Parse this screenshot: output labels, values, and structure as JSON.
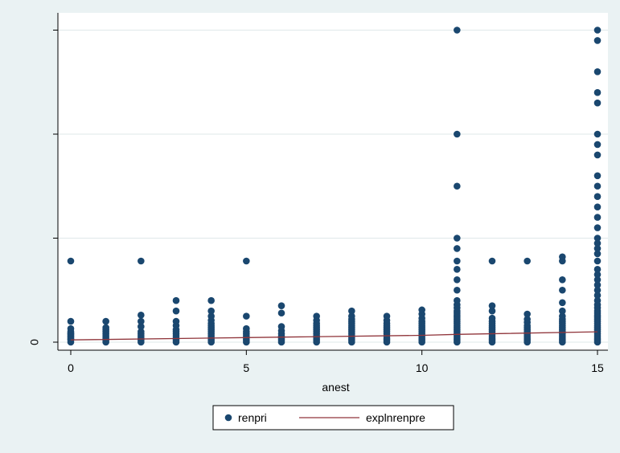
{
  "chart_data": {
    "type": "scatter",
    "title": "",
    "xlabel": "anest",
    "ylabel": "",
    "xlim": [
      0,
      15
    ],
    "x_ticks": [
      "0",
      "5",
      "10",
      "15"
    ],
    "y_tick_labels": [
      "0",
      "",
      "",
      ""
    ],
    "grid": true,
    "legend_position": "bottom",
    "colors": {
      "background": "#eaf2f3",
      "plot_area": "#ffffff",
      "grid": "#dfe8ea",
      "points": "#1a476f",
      "fit_line": "#90353b"
    },
    "series": [
      {
        "name": "renpri",
        "kind": "scatter",
        "columns": [
          {
            "x": 0,
            "points": [
              0.0,
              0.02,
              0.03,
              0.04,
              0.05,
              0.06,
              0.07,
              0.08,
              0.09,
              0.1,
              0.13,
              0.2,
              0.78
            ]
          },
          {
            "x": 1,
            "points": [
              0.0,
              0.02,
              0.04,
              0.06,
              0.08,
              0.1,
              0.12,
              0.14,
              0.2
            ]
          },
          {
            "x": 2,
            "points": [
              0.0,
              0.02,
              0.04,
              0.06,
              0.08,
              0.1,
              0.15,
              0.2,
              0.26,
              0.78
            ]
          },
          {
            "x": 3,
            "points": [
              0.0,
              0.02,
              0.04,
              0.06,
              0.08,
              0.1,
              0.12,
              0.16,
              0.2,
              0.3,
              0.4
            ]
          },
          {
            "x": 4,
            "points": [
              0.0,
              0.02,
              0.04,
              0.06,
              0.08,
              0.1,
              0.12,
              0.14,
              0.16,
              0.18,
              0.21,
              0.25,
              0.3,
              0.4
            ]
          },
          {
            "x": 5,
            "points": [
              0.0,
              0.02,
              0.04,
              0.06,
              0.08,
              0.1,
              0.13,
              0.25,
              0.78
            ]
          },
          {
            "x": 6,
            "points": [
              0.0,
              0.02,
              0.04,
              0.06,
              0.08,
              0.11,
              0.15,
              0.28,
              0.35
            ]
          },
          {
            "x": 7,
            "points": [
              0.0,
              0.02,
              0.04,
              0.06,
              0.08,
              0.1,
              0.12,
              0.14,
              0.16,
              0.18,
              0.21,
              0.25
            ]
          },
          {
            "x": 8,
            "points": [
              0.0,
              0.02,
              0.04,
              0.06,
              0.08,
              0.1,
              0.12,
              0.14,
              0.16,
              0.18,
              0.2,
              0.22,
              0.25,
              0.3
            ]
          },
          {
            "x": 9,
            "points": [
              0.0,
              0.02,
              0.04,
              0.06,
              0.08,
              0.1,
              0.12,
              0.14,
              0.16,
              0.18,
              0.21,
              0.25
            ]
          },
          {
            "x": 10,
            "points": [
              0.0,
              0.02,
              0.04,
              0.06,
              0.08,
              0.1,
              0.12,
              0.14,
              0.16,
              0.18,
              0.2,
              0.23,
              0.27,
              0.31
            ]
          },
          {
            "x": 11,
            "points": [
              0.0,
              0.02,
              0.04,
              0.06,
              0.08,
              0.1,
              0.12,
              0.14,
              0.16,
              0.18,
              0.2,
              0.22,
              0.24,
              0.26,
              0.28,
              0.3,
              0.33,
              0.36,
              0.4,
              0.5,
              0.6,
              0.7,
              0.78,
              0.9,
              1.0,
              1.5,
              2.0,
              3.0
            ]
          },
          {
            "x": 12,
            "points": [
              0.0,
              0.02,
              0.04,
              0.06,
              0.08,
              0.1,
              0.12,
              0.14,
              0.16,
              0.18,
              0.2,
              0.23,
              0.3,
              0.35,
              0.78
            ]
          },
          {
            "x": 13,
            "points": [
              0.0,
              0.02,
              0.04,
              0.06,
              0.08,
              0.1,
              0.12,
              0.14,
              0.16,
              0.19,
              0.22,
              0.27,
              0.78
            ]
          },
          {
            "x": 14,
            "points": [
              0.0,
              0.02,
              0.04,
              0.06,
              0.08,
              0.1,
              0.12,
              0.14,
              0.16,
              0.18,
              0.2,
              0.22,
              0.25,
              0.3,
              0.38,
              0.5,
              0.6,
              0.78,
              0.82
            ]
          },
          {
            "x": 15,
            "points": [
              0.0,
              0.02,
              0.04,
              0.06,
              0.08,
              0.1,
              0.12,
              0.14,
              0.16,
              0.18,
              0.2,
              0.22,
              0.24,
              0.26,
              0.28,
              0.3,
              0.33,
              0.36,
              0.4,
              0.45,
              0.5,
              0.55,
              0.6,
              0.65,
              0.7,
              0.78,
              0.85,
              0.9,
              0.95,
              1.0,
              1.1,
              1.2,
              1.3,
              1.4,
              1.5,
              1.6,
              1.8,
              1.9,
              2.0,
              2.3,
              2.4,
              2.6,
              2.9,
              3.0
            ]
          }
        ]
      },
      {
        "name": "explnrenpre",
        "kind": "line",
        "x": [
          0,
          5,
          10,
          11,
          15
        ],
        "y": [
          0.022,
          0.044,
          0.066,
          0.075,
          0.1
        ]
      }
    ]
  }
}
